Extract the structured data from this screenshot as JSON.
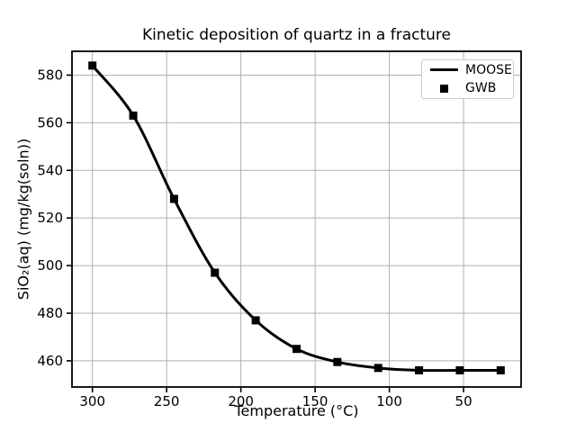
{
  "title": "Kinetic deposition of quartz in a fracture",
  "chart_data": {
    "type": "line",
    "title": "Kinetic deposition of quartz in a fracture",
    "xlabel": "Temperature (°C)",
    "ylabel": "SiO₂(aq) (mg/kg(soln))",
    "x_axis_reversed": true,
    "xlim": [
      313.75,
      11.25
    ],
    "ylim": [
      449,
      590
    ],
    "x_ticks": [
      300,
      250,
      200,
      150,
      100,
      50
    ],
    "y_ticks": [
      460,
      480,
      500,
      520,
      540,
      560,
      580
    ],
    "grid": true,
    "x": [
      300,
      272.5,
      245,
      217.5,
      190,
      162.5,
      135,
      107.5,
      80,
      52.5,
      25
    ],
    "series": [
      {
        "name": "MOOSE",
        "style": "line",
        "color": "#000000",
        "values": [
          584,
          563,
          528,
          497,
          477,
          465,
          459.5,
          457,
          456,
          456,
          456
        ]
      },
      {
        "name": "GWB",
        "style": "scatter-square",
        "color": "#000000",
        "values": [
          584,
          563,
          528,
          497,
          477,
          465,
          459.5,
          457,
          456,
          456,
          456
        ]
      }
    ],
    "legend": {
      "position": "upper right",
      "entries": [
        "MOOSE",
        "GWB"
      ]
    },
    "colors": {
      "line": "#000000",
      "marker": "#000000",
      "grid": "#b0b0b0",
      "spine": "#000000",
      "tick": "#000000",
      "background": "#ffffff",
      "legend_border": "#cccccc"
    }
  }
}
